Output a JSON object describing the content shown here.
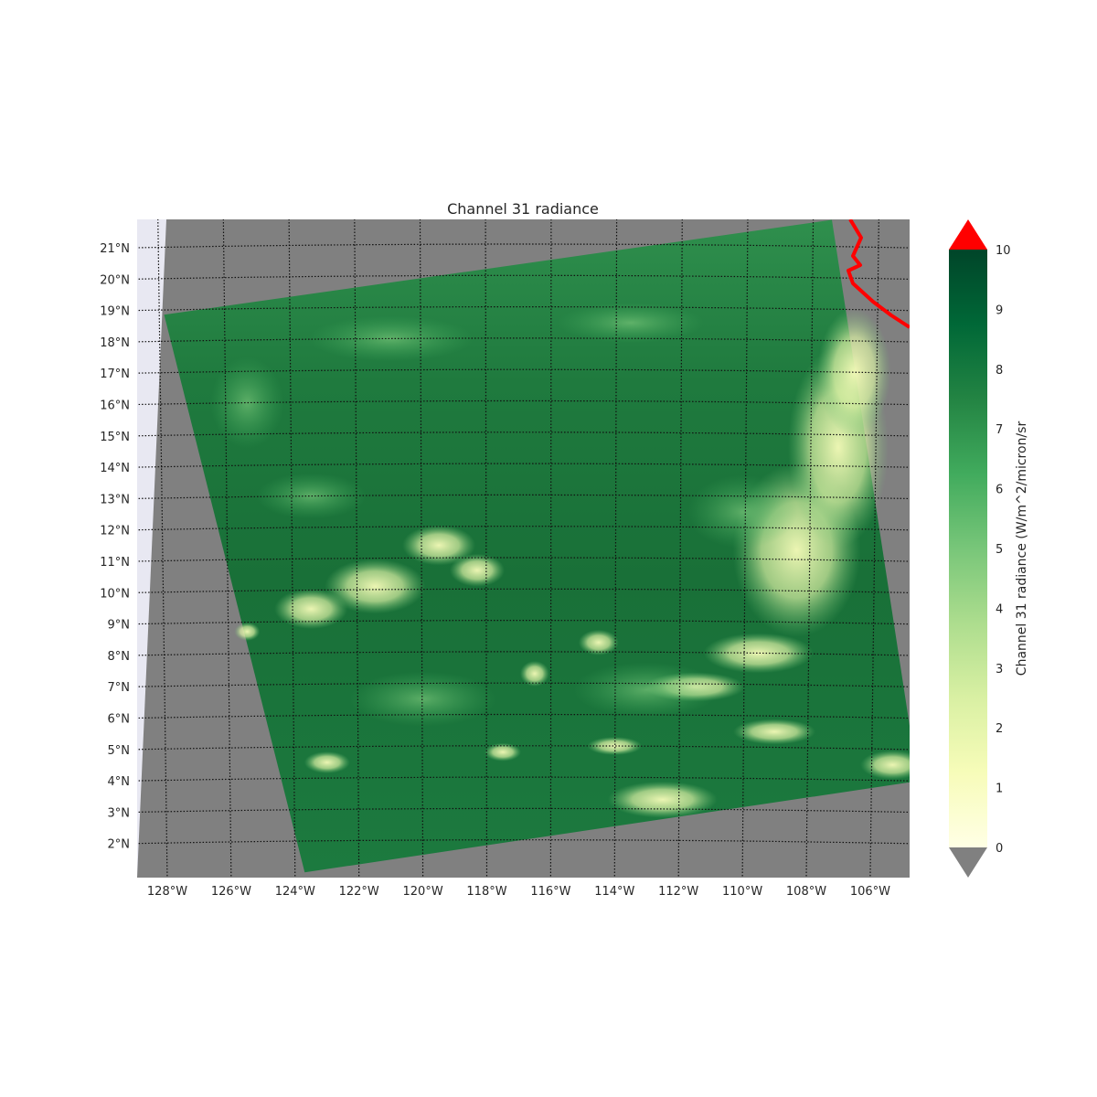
{
  "title": "Channel 31 radiance",
  "map": {
    "lat_labels": [
      "21°N",
      "20°N",
      "19°N",
      "18°N",
      "17°N",
      "16°N",
      "15°N",
      "14°N",
      "13°N",
      "12°N",
      "11°N",
      "10°N",
      "9°N",
      "8°N",
      "7°N",
      "6°N",
      "5°N",
      "4°N",
      "3°N",
      "2°N"
    ],
    "lon_labels": [
      "128°W",
      "126°W",
      "124°W",
      "122°W",
      "120°W",
      "118°W",
      "116°W",
      "114°W",
      "112°W",
      "110°W",
      "108°W",
      "106°W"
    ],
    "lat_values": [
      21,
      20,
      19,
      18,
      17,
      16,
      15,
      14,
      13,
      12,
      11,
      10,
      9,
      8,
      7,
      6,
      5,
      4,
      3,
      2
    ],
    "lon_values": [
      -128,
      -126,
      -124,
      -122,
      -120,
      -118,
      -116,
      -114,
      -112,
      -110,
      -108,
      -106
    ],
    "extent": {
      "lon_min": -128.8,
      "lon_max": -104.5,
      "lat_min": 1.0,
      "lat_max": 21.9
    },
    "swath_corners": [
      {
        "lon": -128.1,
        "lat": 18.85
      },
      {
        "lon": -107.2,
        "lat": 21.85
      },
      {
        "lon": -104.5,
        "lat": 4.0
      },
      {
        "lon": -123.7,
        "lat": 1.0
      }
    ],
    "colors": {
      "ocean_background": "#808080",
      "outside_disk": "#e8e8f2",
      "gridline": "#111111",
      "coastline": "#ff0000"
    }
  },
  "colorbar": {
    "label": "Channel 31 radiance (W/m^2/micron/sr",
    "tick_labels": [
      "10",
      "9",
      "8",
      "7",
      "6",
      "5",
      "4",
      "3",
      "2",
      "1",
      "0"
    ],
    "ticks": [
      10,
      9,
      8,
      7,
      6,
      5,
      4,
      3,
      2,
      1,
      0
    ],
    "vmin": 0,
    "vmax": 10,
    "over_color": "#ff0000",
    "under_color": "#808080",
    "colormap": "YlGn",
    "colors": [
      "#ffffe5",
      "#f7fcb9",
      "#d9f0a3",
      "#addd8e",
      "#78c679",
      "#41ab5d",
      "#238443",
      "#006837",
      "#004529"
    ]
  }
}
